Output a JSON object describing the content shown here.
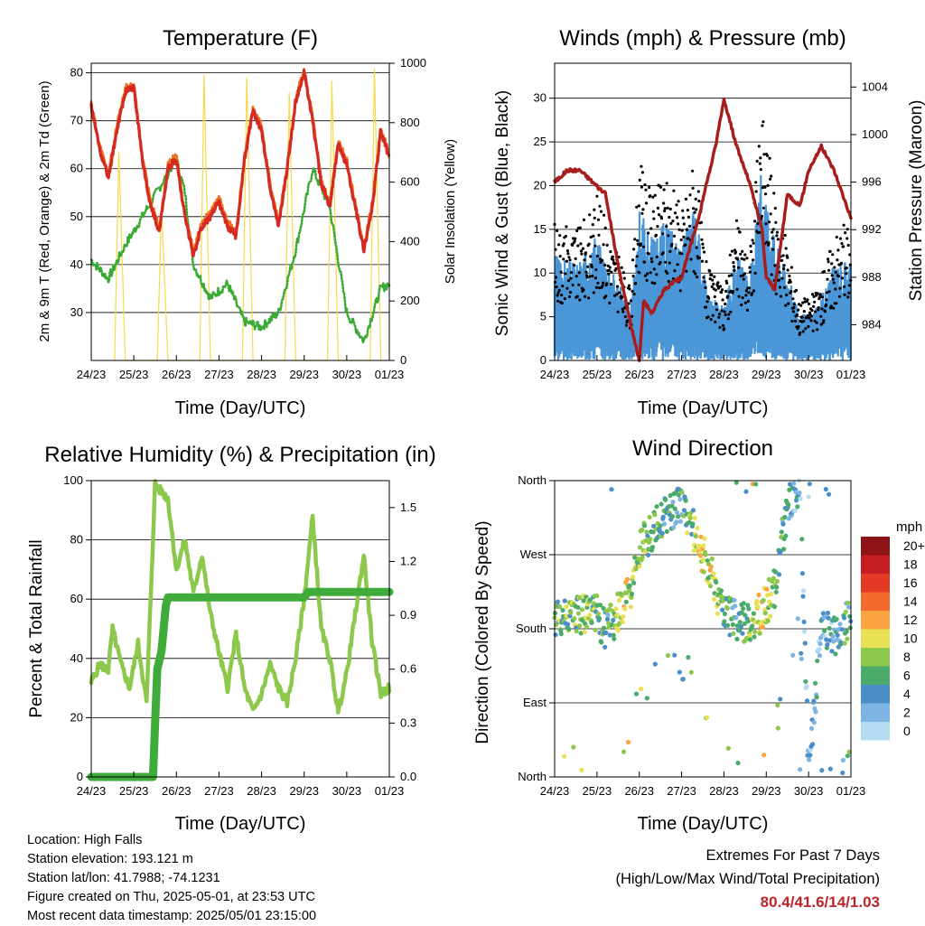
{
  "days": [
    "24/23",
    "25/23",
    "26/23",
    "27/23",
    "28/23",
    "29/23",
    "30/23",
    "01/23"
  ],
  "colors": {
    "red": "#d42a22",
    "orange": "#f07020",
    "green": "#3aaa35",
    "yellow": "#f7d94a",
    "black": "#000000",
    "blue": "#4b96d6",
    "maroon": "#a81c1c",
    "rh": "#8cc84b",
    "rain": "#3fab3a"
  },
  "chart_data": [
    {
      "type": "line",
      "title": "Temperature (F)",
      "xlabel": "Time (Day/UTC)",
      "ylabel": "2m & 9m T (Red, Orange) & 2m Td (Green)",
      "y2label": "Solar Insolation (Yellow)",
      "ylim": [
        20,
        82
      ],
      "y2lim": [
        0,
        1000
      ],
      "yticks": [
        30,
        40,
        50,
        60,
        70,
        80
      ],
      "y2ticks": [
        0,
        200,
        400,
        600,
        800,
        1000
      ],
      "series": [
        {
          "x": [
            0,
            0.2,
            0.4,
            0.6,
            0.8,
            1.0,
            1.2,
            1.4,
            1.6,
            1.8,
            2.0,
            2.2,
            2.4,
            2.6,
            2.8,
            3.0,
            3.2,
            3.4,
            3.6,
            3.8,
            4.0,
            4.2,
            4.4,
            4.6,
            4.8,
            5.0,
            5.2,
            5.4,
            5.6,
            5.8,
            6.0,
            6.2,
            6.4,
            6.6,
            6.8,
            7.0
          ],
          "y": [
            73,
            64,
            58,
            68,
            76,
            77,
            62,
            52,
            47,
            60,
            62,
            50,
            42,
            48,
            50,
            53,
            48,
            46,
            62,
            72,
            68,
            56,
            48,
            60,
            74,
            80,
            70,
            57,
            52,
            65,
            61,
            52,
            43,
            52,
            68,
            62
          ]
        },
        {
          "x": [
            0,
            0.4,
            0.8,
            1.2,
            1.6,
            2.0,
            2.2,
            2.4,
            2.8,
            3.2,
            3.6,
            4.0,
            4.4,
            4.8,
            5.2,
            5.6,
            6.0,
            6.4,
            6.8,
            7.0
          ],
          "y": [
            41,
            37,
            44,
            50,
            56,
            62,
            55,
            40,
            33,
            36,
            28,
            27,
            30,
            43,
            60,
            52,
            30,
            24,
            35,
            36
          ]
        },
        {
          "x": [
            0.55,
            0.65,
            0.8,
            1.55,
            1.65,
            1.8,
            2.55,
            2.65,
            2.8,
            3.55,
            3.65,
            3.8,
            4.55,
            4.65,
            4.8,
            5.55,
            5.65,
            5.8,
            6.55,
            6.65,
            6.8
          ],
          "y": [
            0,
            700,
            0,
            0,
            520,
            0,
            0,
            960,
            0,
            0,
            950,
            0,
            0,
            900,
            0,
            0,
            940,
            0,
            0,
            980,
            0
          ]
        }
      ]
    },
    {
      "type": "scatter",
      "title": "Winds (mph) & Pressure (mb)",
      "xlabel": "Time (Day/UTC)",
      "ylabel": "Sonic Wind & Gust (Blue, Black)",
      "y2label": "Station Pressure (Maroon)",
      "ylim": [
        0,
        34
      ],
      "y2lim": [
        981,
        1006
      ],
      "yticks": [
        0,
        5,
        10,
        15,
        20,
        25,
        30
      ],
      "y2ticks": [
        984,
        988,
        992,
        996,
        1000,
        1004
      ],
      "series": [
        {
          "x": [
            0,
            0.3,
            0.6,
            0.9,
            1.2,
            1.5,
            1.8,
            2.0,
            2.1,
            2.3,
            2.6,
            3.0,
            3.4,
            3.8,
            4.0,
            4.3,
            4.6,
            4.9,
            5.0,
            5.2,
            5.5,
            5.8,
            6.0,
            6.3,
            6.6,
            6.8,
            7.0
          ],
          "y": [
            996,
            997,
            997,
            996,
            995,
            989,
            984,
            981,
            986,
            985,
            987,
            988,
            993,
            999,
            1003,
            999,
            996,
            992,
            988,
            987,
            995,
            994,
            997,
            999,
            997,
            995,
            993
          ]
        }
      ]
    },
    {
      "type": "line",
      "title": "Relative Humidity (%) & Precipitation (in)",
      "xlabel": "Time (Day/UTC)",
      "ylabel": "Percent & Total Rainfall",
      "ylim": [
        0,
        100
      ],
      "y2lim": [
        0,
        1.65
      ],
      "yticks": [
        0,
        20,
        40,
        60,
        80,
        100
      ],
      "y2ticks": [
        0.0,
        0.3,
        0.6,
        0.9,
        1.2,
        1.5
      ],
      "series": [
        {
          "x": [
            0,
            0.2,
            0.4,
            0.5,
            0.7,
            0.9,
            1.1,
            1.3,
            1.5,
            1.6,
            1.8,
            2.0,
            2.2,
            2.4,
            2.6,
            2.8,
            3.0,
            3.2,
            3.4,
            3.6,
            3.8,
            4.0,
            4.2,
            4.4,
            4.6,
            4.8,
            5.0,
            5.2,
            5.4,
            5.6,
            5.8,
            6.0,
            6.2,
            6.4,
            6.6,
            6.8,
            7.0
          ],
          "y": [
            32,
            38,
            36,
            50,
            38,
            30,
            45,
            25,
            99,
            97,
            94,
            70,
            80,
            62,
            75,
            55,
            42,
            30,
            48,
            30,
            22,
            28,
            38,
            30,
            25,
            40,
            60,
            88,
            50,
            40,
            22,
            35,
            55,
            75,
            45,
            28,
            30
          ]
        },
        {
          "x": [
            0,
            1.45,
            1.5,
            1.55,
            1.65,
            1.75,
            1.8,
            1.9,
            2.0,
            5.0,
            5.1,
            7.0
          ],
          "y": [
            0,
            0,
            0.3,
            0.6,
            0.7,
            0.95,
            1.0,
            1.0,
            1.0,
            1.0,
            1.03,
            1.03
          ]
        }
      ]
    },
    {
      "type": "scatter",
      "title": "Wind Direction",
      "xlabel": "Time (Day/UTC)",
      "ylabel": "Direction (Colored By Speed)",
      "yticks": [
        "North",
        "East",
        "South",
        "West",
        "North"
      ],
      "legend_title": "mph",
      "legend_labels": [
        "20+",
        "18",
        "16",
        "14",
        "12",
        "10",
        "8",
        "6",
        "4",
        "2",
        "0"
      ],
      "legend_colors": [
        "#8e1418",
        "#c61d22",
        "#e43a25",
        "#f26a2c",
        "#f9a341",
        "#e8e055",
        "#8cc84b",
        "#4aab6a",
        "#4b8fc9",
        "#7db4e2",
        "#b6dcf5"
      ]
    }
  ],
  "info": {
    "location": "Location: High Falls",
    "elevation": "Station elevation: 193.121 m",
    "latlon": "Station lat/lon: 41.7988; -74.1231",
    "created": "Figure created on Thu, 2025-05-01, at 23:53 UTC",
    "recent": "Most recent data timestamp: 2025/05/01 23:15:00"
  },
  "extremes": {
    "title": "Extremes For Past 7 Days",
    "subtitle": "(High/Low/Max Wind/Total Precipitation)",
    "values": "80.4/41.6/14/1.03"
  }
}
